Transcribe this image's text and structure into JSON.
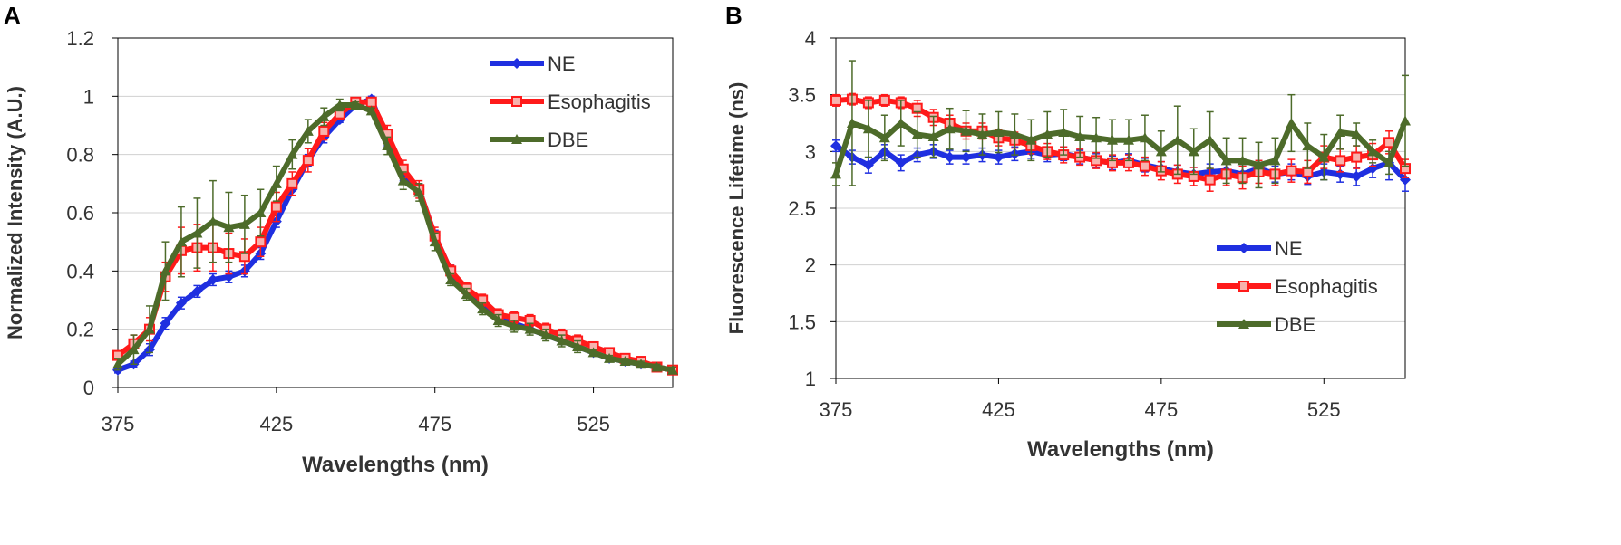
{
  "panels": {
    "a": {
      "label": "A"
    },
    "b": {
      "label": "B"
    }
  },
  "colors": {
    "NE": "#1f2fe0",
    "Esophagitis": "#ff1a1a",
    "DBE": "#4d6b2a"
  },
  "chart_data": [
    {
      "type": "line",
      "panel": "A",
      "title": "",
      "xlabel": "Wavelengths (nm)",
      "ylabel": "Normalized Intensity (A.U.)",
      "xlim": [
        375,
        550
      ],
      "ylim": [
        0,
        1.2
      ],
      "xticks": [
        375,
        425,
        475,
        525
      ],
      "yticks": [
        0,
        0.2,
        0.4,
        0.6,
        0.8,
        1,
        1.2
      ],
      "ytick_labels": [
        "0",
        "0.2",
        "0.4",
        "0.6",
        "0.8",
        "1",
        "1.2"
      ],
      "legend": [
        "NE",
        "Esophagitis",
        "DBE"
      ],
      "legend_position": "top-right",
      "x": [
        375,
        380,
        385,
        390,
        395,
        400,
        405,
        410,
        415,
        420,
        425,
        430,
        435,
        440,
        445,
        450,
        455,
        460,
        465,
        470,
        475,
        480,
        485,
        490,
        495,
        500,
        505,
        510,
        515,
        520,
        525,
        530,
        535,
        540,
        545,
        550
      ],
      "series": [
        {
          "name": "NE",
          "marker": "diamond",
          "values": [
            0.06,
            0.08,
            0.13,
            0.22,
            0.29,
            0.33,
            0.37,
            0.38,
            0.4,
            0.46,
            0.57,
            0.68,
            0.78,
            0.86,
            0.92,
            0.97,
            0.99,
            0.85,
            0.73,
            0.68,
            0.52,
            0.4,
            0.33,
            0.28,
            0.24,
            0.22,
            0.2,
            0.18,
            0.16,
            0.14,
            0.12,
            0.1,
            0.09,
            0.08,
            0.07,
            0.06
          ],
          "errors": [
            0.01,
            0.01,
            0.02,
            0.02,
            0.02,
            0.02,
            0.02,
            0.02,
            0.02,
            0.02,
            0.02,
            0.02,
            0.02,
            0.02,
            0.01,
            0.01,
            0.01,
            0.02,
            0.02,
            0.02,
            0.02,
            0.02,
            0.01,
            0.01,
            0.01,
            0.01,
            0.01,
            0.01,
            0.01,
            0.01,
            0.01,
            0.01,
            0.01,
            0.01,
            0.01,
            0.01
          ]
        },
        {
          "name": "Esophagitis",
          "marker": "square",
          "values": [
            0.11,
            0.15,
            0.2,
            0.38,
            0.47,
            0.48,
            0.48,
            0.46,
            0.45,
            0.5,
            0.62,
            0.7,
            0.78,
            0.88,
            0.94,
            0.98,
            0.98,
            0.87,
            0.75,
            0.68,
            0.52,
            0.4,
            0.34,
            0.3,
            0.25,
            0.24,
            0.23,
            0.2,
            0.18,
            0.16,
            0.14,
            0.12,
            0.1,
            0.09,
            0.07,
            0.06
          ],
          "errors": [
            0.01,
            0.03,
            0.04,
            0.05,
            0.08,
            0.08,
            0.08,
            0.07,
            0.06,
            0.05,
            0.05,
            0.04,
            0.04,
            0.03,
            0.02,
            0.01,
            0.01,
            0.03,
            0.03,
            0.03,
            0.03,
            0.02,
            0.02,
            0.02,
            0.02,
            0.02,
            0.02,
            0.02,
            0.02,
            0.02,
            0.01,
            0.01,
            0.01,
            0.01,
            0.01,
            0.01
          ]
        },
        {
          "name": "DBE",
          "marker": "triangle",
          "values": [
            0.08,
            0.13,
            0.2,
            0.4,
            0.5,
            0.53,
            0.57,
            0.55,
            0.56,
            0.6,
            0.7,
            0.8,
            0.88,
            0.93,
            0.97,
            0.97,
            0.95,
            0.83,
            0.71,
            0.67,
            0.5,
            0.37,
            0.32,
            0.27,
            0.23,
            0.21,
            0.2,
            0.18,
            0.16,
            0.14,
            0.12,
            0.1,
            0.09,
            0.08,
            0.07,
            0.06
          ],
          "errors": [
            0.02,
            0.05,
            0.08,
            0.1,
            0.12,
            0.12,
            0.14,
            0.12,
            0.1,
            0.08,
            0.06,
            0.05,
            0.04,
            0.03,
            0.02,
            0.01,
            0.01,
            0.03,
            0.03,
            0.03,
            0.03,
            0.02,
            0.02,
            0.02,
            0.02,
            0.02,
            0.02,
            0.02,
            0.02,
            0.02,
            0.01,
            0.01,
            0.01,
            0.01,
            0.01,
            0.01
          ]
        }
      ]
    },
    {
      "type": "line",
      "panel": "B",
      "title": "",
      "xlabel": "Wavelengths (nm)",
      "ylabel": "Fluorescence Lifetime (ns)",
      "xlim": [
        375,
        550
      ],
      "ylim": [
        1,
        4
      ],
      "xticks": [
        375,
        425,
        475,
        525
      ],
      "yticks": [
        1,
        1.5,
        2,
        2.5,
        3,
        3.5,
        4
      ],
      "ytick_labels": [
        "1",
        "1.5",
        "2",
        "2.5",
        "3",
        "3.5",
        "4"
      ],
      "legend": [
        "NE",
        "Esophagitis",
        "DBE"
      ],
      "legend_position": "bottom-right",
      "x": [
        375,
        380,
        385,
        390,
        395,
        400,
        405,
        410,
        415,
        420,
        425,
        430,
        435,
        440,
        445,
        450,
        455,
        460,
        465,
        470,
        475,
        480,
        485,
        490,
        495,
        500,
        505,
        510,
        515,
        520,
        525,
        530,
        535,
        540,
        545,
        550
      ],
      "series": [
        {
          "name": "NE",
          "marker": "diamond",
          "values": [
            3.05,
            2.95,
            2.88,
            3.0,
            2.9,
            2.97,
            3.0,
            2.95,
            2.95,
            2.97,
            2.95,
            2.98,
            3.0,
            2.97,
            2.98,
            2.95,
            2.92,
            2.9,
            2.92,
            2.88,
            2.85,
            2.82,
            2.8,
            2.82,
            2.83,
            2.8,
            2.85,
            2.8,
            2.82,
            2.78,
            2.82,
            2.8,
            2.78,
            2.85,
            2.9,
            2.75
          ],
          "errors": [
            0.05,
            0.06,
            0.07,
            0.06,
            0.07,
            0.06,
            0.06,
            0.06,
            0.06,
            0.06,
            0.06,
            0.06,
            0.06,
            0.06,
            0.06,
            0.06,
            0.06,
            0.06,
            0.06,
            0.06,
            0.06,
            0.06,
            0.06,
            0.07,
            0.07,
            0.07,
            0.07,
            0.07,
            0.07,
            0.07,
            0.07,
            0.07,
            0.08,
            0.08,
            0.15,
            0.1
          ]
        },
        {
          "name": "Esophagitis",
          "marker": "square",
          "values": [
            3.45,
            3.46,
            3.43,
            3.45,
            3.43,
            3.38,
            3.3,
            3.25,
            3.18,
            3.18,
            3.12,
            3.1,
            3.05,
            3.0,
            2.97,
            2.95,
            2.92,
            2.9,
            2.9,
            2.87,
            2.83,
            2.8,
            2.78,
            2.75,
            2.8,
            2.77,
            2.82,
            2.8,
            2.83,
            2.82,
            2.95,
            2.92,
            2.95,
            2.97,
            3.08,
            2.85
          ],
          "errors": [
            0.05,
            0.05,
            0.05,
            0.05,
            0.05,
            0.07,
            0.07,
            0.07,
            0.07,
            0.07,
            0.07,
            0.07,
            0.07,
            0.07,
            0.07,
            0.07,
            0.07,
            0.07,
            0.07,
            0.08,
            0.08,
            0.08,
            0.08,
            0.1,
            0.1,
            0.1,
            0.1,
            0.1,
            0.1,
            0.1,
            0.1,
            0.1,
            0.1,
            0.1,
            0.1,
            0.08
          ]
        },
        {
          "name": "DBE",
          "marker": "triangle",
          "values": [
            2.8,
            3.25,
            3.2,
            3.12,
            3.25,
            3.15,
            3.13,
            3.2,
            3.18,
            3.15,
            3.17,
            3.15,
            3.1,
            3.15,
            3.17,
            3.13,
            3.12,
            3.1,
            3.1,
            3.12,
            3.0,
            3.1,
            3.0,
            3.1,
            2.92,
            2.92,
            2.88,
            2.92,
            3.25,
            3.05,
            2.95,
            3.17,
            3.15,
            3.0,
            2.9,
            3.27
          ],
          "errors": [
            0.1,
            0.55,
            0.25,
            0.2,
            0.2,
            0.2,
            0.18,
            0.18,
            0.18,
            0.18,
            0.18,
            0.18,
            0.18,
            0.2,
            0.2,
            0.18,
            0.18,
            0.18,
            0.18,
            0.2,
            0.18,
            0.3,
            0.2,
            0.25,
            0.2,
            0.2,
            0.2,
            0.2,
            0.25,
            0.2,
            0.2,
            0.15,
            0.1,
            0.1,
            0.1,
            0.4
          ]
        }
      ]
    }
  ]
}
